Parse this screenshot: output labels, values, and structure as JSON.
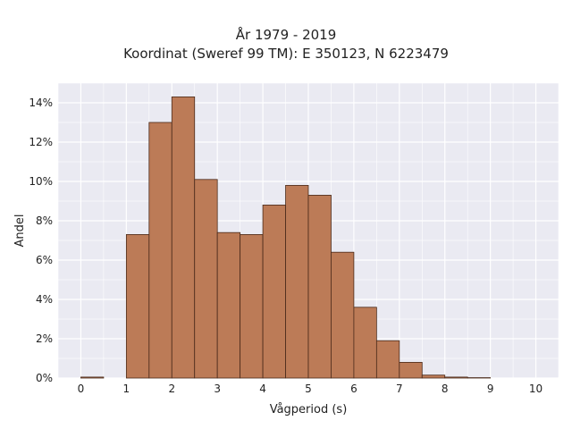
{
  "chart_data": {
    "type": "bar",
    "title_lines": [
      "År 1979 - 2019",
      "Koordinat (Sweref 99 TM): E 350123, N 6223479"
    ],
    "xlabel": "Vågperiod (s)",
    "ylabel": "Andel",
    "bin_width": 0.5,
    "bins": [
      {
        "start": 0.0,
        "value": 0.05
      },
      {
        "start": 0.5,
        "value": 0.0
      },
      {
        "start": 1.0,
        "value": 7.3
      },
      {
        "start": 1.5,
        "value": 13.0
      },
      {
        "start": 2.0,
        "value": 14.3
      },
      {
        "start": 2.5,
        "value": 10.1
      },
      {
        "start": 3.0,
        "value": 7.4
      },
      {
        "start": 3.5,
        "value": 7.3
      },
      {
        "start": 4.0,
        "value": 8.8
      },
      {
        "start": 4.5,
        "value": 9.8
      },
      {
        "start": 5.0,
        "value": 9.3
      },
      {
        "start": 5.5,
        "value": 6.4
      },
      {
        "start": 6.0,
        "value": 3.6
      },
      {
        "start": 6.5,
        "value": 1.9
      },
      {
        "start": 7.0,
        "value": 0.8
      },
      {
        "start": 7.5,
        "value": 0.15
      },
      {
        "start": 8.0,
        "value": 0.05
      },
      {
        "start": 8.5,
        "value": 0.02
      }
    ],
    "xlim": [
      -0.5,
      10.5
    ],
    "ylim": [
      0,
      15
    ],
    "xticks": [
      0,
      1,
      2,
      3,
      4,
      5,
      6,
      7,
      8,
      9,
      10
    ],
    "xtick_labels": [
      "0",
      "1",
      "2",
      "3",
      "4",
      "5",
      "6",
      "7",
      "8",
      "9",
      "10"
    ],
    "yticks": [
      0,
      2,
      4,
      6,
      8,
      10,
      12,
      14
    ],
    "ytick_labels": [
      "0%",
      "2%",
      "4%",
      "6%",
      "8%",
      "10%",
      "12%",
      "14%"
    ],
    "grid": true,
    "colors": {
      "bar_fill": "#bc7b57",
      "bar_edge": "#4a2a1a",
      "plot_background": "#eaeaf2",
      "grid": "#ffffff"
    }
  }
}
